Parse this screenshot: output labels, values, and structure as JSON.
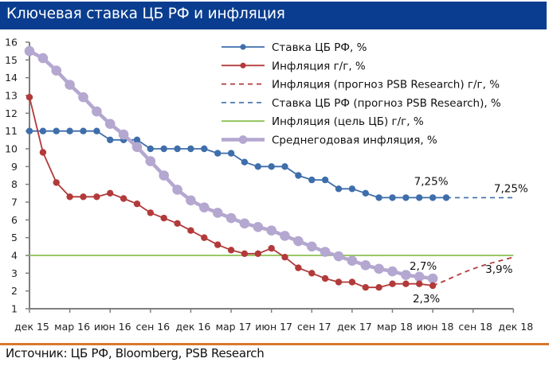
{
  "title": "Ключевая ставка ЦБ РФ и инфляция",
  "source": "Источник: ЦБ РФ, Bloomberg, PSB Research",
  "colors": {
    "title_bg": "#0a3d8f",
    "key_rate": "#3e6eab",
    "inflation": "#b23a3a",
    "target": "#8cc152",
    "avg_inflation": "#b4a7d0",
    "axis": "#7f7f7f",
    "source_rule": "#d9782b"
  },
  "chart_data": {
    "type": "line",
    "title": "Ключевая ставка ЦБ РФ и инфляция",
    "xlabel": "",
    "ylabel": "",
    "ylim": [
      1,
      16
    ],
    "yticks": [
      "1",
      "2",
      "3",
      "4",
      "5",
      "6",
      "7",
      "8",
      "9",
      "10",
      "11",
      "12",
      "13",
      "14",
      "15",
      "16"
    ],
    "grid": false,
    "legend_position": "top-right",
    "x_months": [
      "дек 15",
      "янв 16",
      "фев 16",
      "мар 16",
      "апр 16",
      "май 16",
      "июн 16",
      "июл 16",
      "авг 16",
      "сен 16",
      "окт 16",
      "ноя 16",
      "дек 16",
      "янв 17",
      "фев 17",
      "мар 17",
      "апр 17",
      "май 17",
      "июн 17",
      "июл 17",
      "авг 17",
      "сен 17",
      "окт 17",
      "ноя 17",
      "дек 17",
      "янв 18",
      "фев 18",
      "мар 18",
      "апр 18",
      "май 18",
      "июн 18",
      "июл 18",
      "авг 18",
      "сен 18",
      "окт 18",
      "ноя 18",
      "дек 18"
    ],
    "xtick_labels": [
      "дек 15",
      "мар 16",
      "июн 16",
      "сен 16",
      "дек 16",
      "мар 17",
      "июн 17",
      "сен 17",
      "дек 17",
      "мар 18",
      "июн 18",
      "сен 18",
      "дек 18"
    ],
    "series": [
      {
        "name": "Ставка ЦБ РФ, %",
        "style": "solid-markers",
        "start_index": 0,
        "values": [
          11,
          11,
          11,
          11,
          11,
          11,
          10.5,
          10.5,
          10.5,
          10,
          10,
          10,
          10,
          10,
          9.75,
          9.75,
          9.25,
          9,
          9,
          9,
          8.5,
          8.25,
          8.25,
          7.75,
          7.75,
          7.5,
          7.25,
          7.25,
          7.25,
          7.25,
          7.25,
          7.25
        ]
      },
      {
        "name": "Инфляция г/г, %",
        "style": "solid-markers",
        "start_index": 0,
        "values": [
          12.9,
          9.8,
          8.1,
          7.3,
          7.3,
          7.3,
          7.5,
          7.2,
          6.9,
          6.4,
          6.1,
          5.8,
          5.4,
          5.0,
          4.6,
          4.3,
          4.1,
          4.1,
          4.4,
          3.9,
          3.3,
          3.0,
          2.7,
          2.5,
          2.5,
          2.2,
          2.2,
          2.4,
          2.4,
          2.4,
          2.3
        ]
      },
      {
        "name": "Инфляция (прогноз PSB Research) г/г, %",
        "style": "dashed",
        "start_index": 30,
        "values": [
          2.3,
          2.6,
          2.95,
          3.25,
          3.5,
          3.7,
          3.9
        ]
      },
      {
        "name": "Ставка ЦБ РФ (прогноз  PSB Research), %",
        "style": "dashed",
        "start_index": 31,
        "values": [
          7.25,
          7.25,
          7.25,
          7.25,
          7.25,
          7.25
        ]
      },
      {
        "name": "Инфляция (цель ЦБ) г/г, %",
        "style": "solid",
        "start_index": 0,
        "values": [
          4,
          4,
          4,
          4,
          4,
          4,
          4,
          4,
          4,
          4,
          4,
          4,
          4,
          4,
          4,
          4,
          4,
          4,
          4,
          4,
          4,
          4,
          4,
          4,
          4,
          4,
          4,
          4,
          4,
          4,
          4,
          4,
          4,
          4,
          4,
          4,
          4
        ]
      },
      {
        "name": "Среднегодовая инфляция, %",
        "style": "thick-markers",
        "start_index": 0,
        "values": [
          15.5,
          15.1,
          14.4,
          13.6,
          12.9,
          12.1,
          11.4,
          10.8,
          10.1,
          9.3,
          8.5,
          7.7,
          7.1,
          6.7,
          6.4,
          6.1,
          5.8,
          5.6,
          5.4,
          5.1,
          4.8,
          4.5,
          4.2,
          3.95,
          3.7,
          3.45,
          3.25,
          3.1,
          2.9,
          2.8,
          2.7
        ]
      }
    ],
    "annotations": [
      {
        "text": "7,25%",
        "series": 0,
        "index": 30
      },
      {
        "text": "7,25%",
        "series": 3,
        "index": 36
      },
      {
        "text": "2,7%",
        "series": 5,
        "index": 30
      },
      {
        "text": "2,3%",
        "series": 1,
        "index": 30
      },
      {
        "text": "3,9%",
        "series": 2,
        "index": 36
      }
    ]
  }
}
